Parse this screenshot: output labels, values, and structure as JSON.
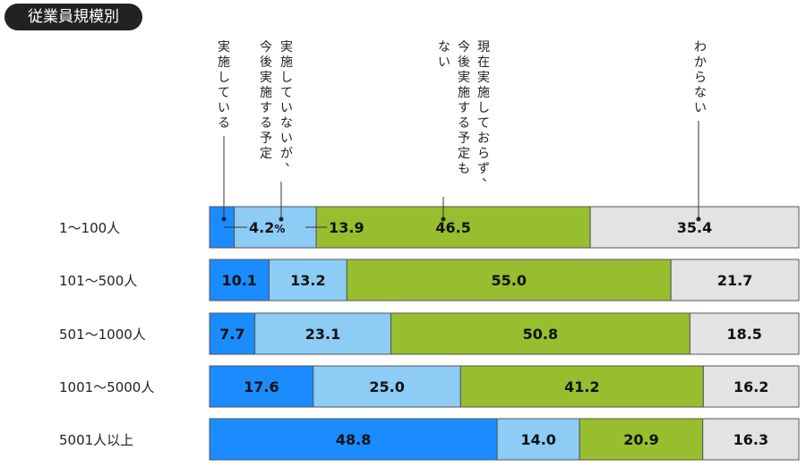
{
  "section_label": "従業員規模別",
  "colors": {
    "implementing": "#1a8cff",
    "planning": "#8cccf5",
    "not_planned": "#96be2f",
    "unknown": "#e3e3e3"
  },
  "chart_data": {
    "type": "bar",
    "orientation": "horizontal",
    "stacked": true,
    "percent": true,
    "categories": [
      "1～100人",
      "101～500人",
      "501～1000人",
      "1001～5000人",
      "5001人以上"
    ],
    "series": [
      {
        "name": "実施している",
        "values": [
          4.2,
          10.1,
          7.7,
          17.6,
          48.8
        ]
      },
      {
        "name": "実施していないが、今後実施する予定",
        "values": [
          13.9,
          13.2,
          23.1,
          25.0,
          14.0
        ]
      },
      {
        "name": "現在実施しておらず、今後実施する予定もない",
        "values": [
          46.5,
          55.0,
          50.8,
          41.2,
          20.9
        ]
      },
      {
        "name": "わからない",
        "values": [
          35.4,
          21.7,
          18.5,
          16.2,
          16.3
        ]
      }
    ],
    "value_labels": [
      [
        "4.2%",
        "13.9",
        "46.5",
        "35.4"
      ],
      [
        "10.1",
        "13.2",
        "55.0",
        "21.7"
      ],
      [
        "7.7",
        "23.1",
        "50.8",
        "18.5"
      ],
      [
        "17.6",
        "25.0",
        "41.2",
        "16.2"
      ],
      [
        "48.8",
        "14.0",
        "20.9",
        "16.3"
      ]
    ],
    "legend_labels": [
      [
        "実施している"
      ],
      [
        "実施していないが、",
        "今後実施する予定"
      ],
      [
        "現在実施しておらず、",
        "今後実施する予定も",
        "ない"
      ],
      [
        "わからない"
      ]
    ]
  }
}
